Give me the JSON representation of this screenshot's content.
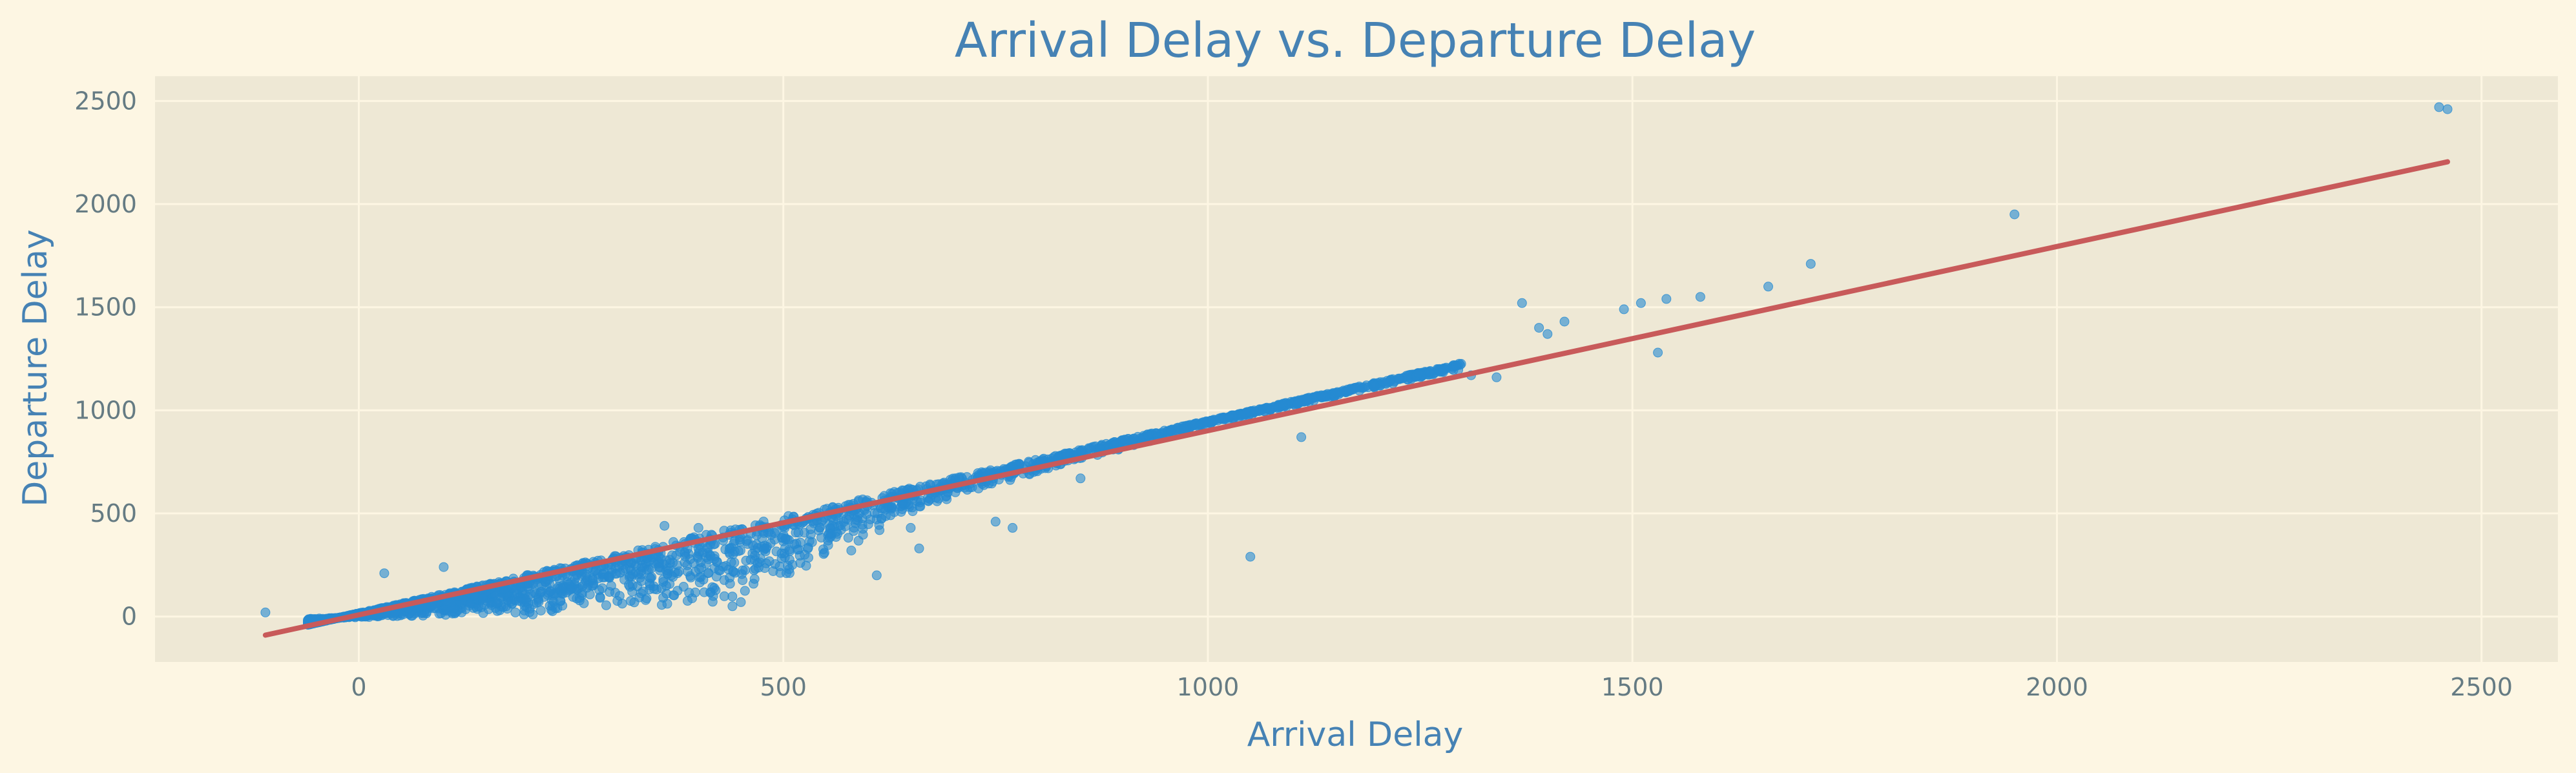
{
  "colors": {
    "figure_background": "#fdf6e3",
    "axes_background": "#eee8d5",
    "grid": "#fdf6e3",
    "title": "#4682b4",
    "axis_label": "#4682b4",
    "tick_label": "#657b83",
    "points": "#268bd2",
    "regression_line": "#c85a5a"
  },
  "chart_data": {
    "type": "scatter",
    "title": "Arrival Delay vs. Departure Delay",
    "xlabel": "Arrival Delay",
    "ylabel": "Departure Delay",
    "xlim": [
      -240,
      2590
    ],
    "ylim": [
      -220,
      2620
    ],
    "xticks": [
      0,
      500,
      1000,
      1500,
      2000,
      2500
    ],
    "yticks": [
      0,
      500,
      1000,
      1500,
      2000,
      2500
    ],
    "grid": true,
    "legend": "none",
    "point_alpha": 0.6,
    "regression_line": {
      "x": [
        -110,
        2460
      ],
      "y": [
        -90,
        2205
      ]
    },
    "dense_band": {
      "x_range": [
        -60,
        1300
      ],
      "upper_y": [
        -40,
        1230
      ],
      "lower_y_at": [
        [
          -60,
          -10
        ],
        [
          50,
          0
        ],
        [
          200,
          0
        ],
        [
          300,
          30
        ],
        [
          400,
          40
        ],
        [
          470,
          100
        ],
        [
          560,
          300
        ],
        [
          700,
          580
        ],
        [
          1000,
          930
        ],
        [
          1300,
          1200
        ]
      ]
    },
    "outliers": [
      {
        "x": -110,
        "y": 20
      },
      {
        "x": 30,
        "y": 210
      },
      {
        "x": 100,
        "y": 240
      },
      {
        "x": 360,
        "y": 440
      },
      {
        "x": 400,
        "y": 430
      },
      {
        "x": 440,
        "y": 50
      },
      {
        "x": 450,
        "y": 70
      },
      {
        "x": 520,
        "y": 260
      },
      {
        "x": 580,
        "y": 320
      },
      {
        "x": 610,
        "y": 200
      },
      {
        "x": 640,
        "y": 550
      },
      {
        "x": 650,
        "y": 430
      },
      {
        "x": 660,
        "y": 330
      },
      {
        "x": 750,
        "y": 460
      },
      {
        "x": 770,
        "y": 430
      },
      {
        "x": 790,
        "y": 690
      },
      {
        "x": 850,
        "y": 670
      },
      {
        "x": 1050,
        "y": 290
      },
      {
        "x": 1110,
        "y": 870
      },
      {
        "x": 1310,
        "y": 1170
      },
      {
        "x": 1340,
        "y": 1160
      },
      {
        "x": 1370,
        "y": 1520
      },
      {
        "x": 1390,
        "y": 1400
      },
      {
        "x": 1400,
        "y": 1370
      },
      {
        "x": 1420,
        "y": 1430
      },
      {
        "x": 1490,
        "y": 1490
      },
      {
        "x": 1510,
        "y": 1520
      },
      {
        "x": 1530,
        "y": 1280
      },
      {
        "x": 1540,
        "y": 1540
      },
      {
        "x": 1580,
        "y": 1550
      },
      {
        "x": 1660,
        "y": 1600
      },
      {
        "x": 1710,
        "y": 1710
      },
      {
        "x": 1950,
        "y": 1950
      },
      {
        "x": 2450,
        "y": 2470
      },
      {
        "x": 2460,
        "y": 2460
      }
    ]
  }
}
